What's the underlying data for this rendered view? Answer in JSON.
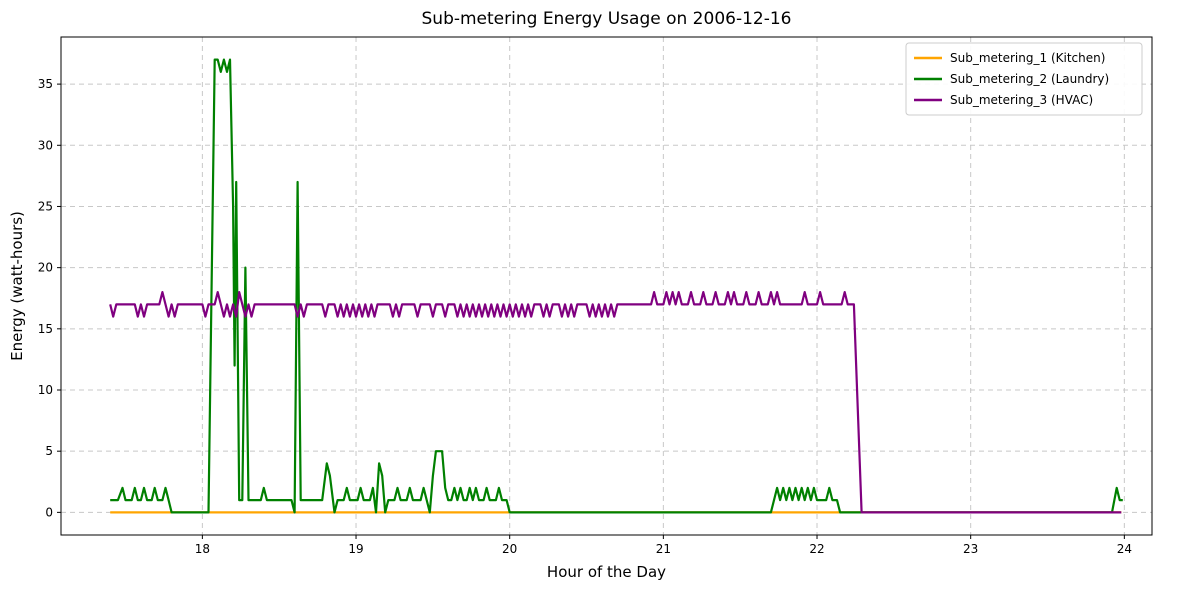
{
  "chart_data": {
    "type": "line",
    "title": "Sub-metering Energy Usage on 2006-12-16",
    "xlabel": "Hour of the Day",
    "ylabel": "Energy (watt-hours)",
    "xlim": [
      17.08,
      24.18
    ],
    "ylim": [
      -1.85,
      38.85
    ],
    "xticks": [
      18,
      19,
      20,
      21,
      22,
      23,
      24
    ],
    "yticks": [
      0,
      5,
      10,
      15,
      20,
      25,
      30,
      35
    ],
    "grid": true,
    "legend_position": "top-right",
    "series": [
      {
        "name": "Sub_metering_1 (Kitchen)",
        "color": "#ffa500",
        "points": [
          [
            17.4,
            0
          ],
          [
            22.1,
            0
          ],
          [
            22.27,
            0
          ],
          [
            23.98,
            0
          ]
        ]
      },
      {
        "name": "Sub_metering_2 (Laundry)",
        "color": "#008000",
        "points": [
          [
            17.4,
            1
          ],
          [
            17.45,
            1
          ],
          [
            17.48,
            2
          ],
          [
            17.5,
            1
          ],
          [
            17.54,
            1
          ],
          [
            17.56,
            2
          ],
          [
            17.58,
            1
          ],
          [
            17.6,
            1
          ],
          [
            17.62,
            2
          ],
          [
            17.64,
            1
          ],
          [
            17.67,
            1
          ],
          [
            17.69,
            2
          ],
          [
            17.71,
            1
          ],
          [
            17.74,
            1
          ],
          [
            17.76,
            2
          ],
          [
            17.78,
            1
          ],
          [
            17.8,
            0
          ],
          [
            18.04,
            0
          ],
          [
            18.08,
            37
          ],
          [
            18.1,
            37
          ],
          [
            18.12,
            36
          ],
          [
            18.14,
            37
          ],
          [
            18.16,
            36
          ],
          [
            18.18,
            37
          ],
          [
            18.2,
            25
          ],
          [
            18.21,
            12
          ],
          [
            18.22,
            27
          ],
          [
            18.24,
            1
          ],
          [
            18.26,
            1
          ],
          [
            18.28,
            20
          ],
          [
            18.3,
            1
          ],
          [
            18.38,
            1
          ],
          [
            18.4,
            2
          ],
          [
            18.42,
            1
          ],
          [
            18.58,
            1
          ],
          [
            18.6,
            0
          ],
          [
            18.62,
            27
          ],
          [
            18.64,
            1
          ],
          [
            18.78,
            1
          ],
          [
            18.81,
            4
          ],
          [
            18.83,
            3
          ],
          [
            18.86,
            0
          ],
          [
            18.88,
            1
          ],
          [
            18.92,
            1
          ],
          [
            18.94,
            2
          ],
          [
            18.96,
            1
          ],
          [
            19.01,
            1
          ],
          [
            19.03,
            2
          ],
          [
            19.05,
            1
          ],
          [
            19.09,
            1
          ],
          [
            19.11,
            2
          ],
          [
            19.13,
            0
          ],
          [
            19.15,
            4
          ],
          [
            19.17,
            3
          ],
          [
            19.19,
            0
          ],
          [
            19.21,
            1
          ],
          [
            19.25,
            1
          ],
          [
            19.27,
            2
          ],
          [
            19.29,
            1
          ],
          [
            19.33,
            1
          ],
          [
            19.35,
            2
          ],
          [
            19.37,
            1
          ],
          [
            19.42,
            1
          ],
          [
            19.44,
            2
          ],
          [
            19.46,
            1
          ],
          [
            19.48,
            0
          ],
          [
            19.5,
            3
          ],
          [
            19.52,
            5
          ],
          [
            19.56,
            5
          ],
          [
            19.58,
            2
          ],
          [
            19.6,
            1
          ],
          [
            19.62,
            1
          ],
          [
            19.64,
            2
          ],
          [
            19.66,
            1
          ],
          [
            19.68,
            2
          ],
          [
            19.7,
            1
          ],
          [
            19.72,
            1
          ],
          [
            19.74,
            2
          ],
          [
            19.76,
            1
          ],
          [
            19.78,
            2
          ],
          [
            19.8,
            1
          ],
          [
            19.83,
            1
          ],
          [
            19.85,
            2
          ],
          [
            19.87,
            1
          ],
          [
            19.91,
            1
          ],
          [
            19.93,
            2
          ],
          [
            19.95,
            1
          ],
          [
            19.98,
            1
          ],
          [
            20.0,
            0
          ],
          [
            21.7,
            0
          ],
          [
            21.74,
            2
          ],
          [
            21.76,
            1
          ],
          [
            21.78,
            2
          ],
          [
            21.8,
            1
          ],
          [
            21.82,
            2
          ],
          [
            21.84,
            1
          ],
          [
            21.86,
            2
          ],
          [
            21.88,
            1
          ],
          [
            21.9,
            2
          ],
          [
            21.92,
            1
          ],
          [
            21.94,
            2
          ],
          [
            21.96,
            1
          ],
          [
            21.98,
            2
          ],
          [
            22.0,
            1
          ],
          [
            22.06,
            1
          ],
          [
            22.08,
            2
          ],
          [
            22.1,
            1
          ],
          [
            22.13,
            1
          ],
          [
            22.15,
            0
          ],
          [
            23.92,
            0
          ],
          [
            23.95,
            2
          ],
          [
            23.97,
            1
          ],
          [
            23.99,
            1
          ]
        ]
      },
      {
        "name": "Sub_metering_3 (HVAC)",
        "color": "#800080",
        "points": [
          [
            17.4,
            17
          ],
          [
            17.42,
            16
          ],
          [
            17.44,
            17
          ],
          [
            17.56,
            17
          ],
          [
            17.58,
            16
          ],
          [
            17.6,
            17
          ],
          [
            17.62,
            16
          ],
          [
            17.64,
            17
          ],
          [
            17.72,
            17
          ],
          [
            17.74,
            18
          ],
          [
            17.76,
            17
          ],
          [
            17.78,
            16
          ],
          [
            17.8,
            17
          ],
          [
            17.82,
            16
          ],
          [
            17.84,
            17
          ],
          [
            18.0,
            17
          ],
          [
            18.02,
            16
          ],
          [
            18.04,
            17
          ],
          [
            18.08,
            17
          ],
          [
            18.1,
            18
          ],
          [
            18.12,
            17
          ],
          [
            18.14,
            16
          ],
          [
            18.16,
            17
          ],
          [
            18.18,
            16
          ],
          [
            18.2,
            17
          ],
          [
            18.22,
            16
          ],
          [
            18.24,
            18
          ],
          [
            18.26,
            17
          ],
          [
            18.28,
            16
          ],
          [
            18.3,
            17
          ],
          [
            18.32,
            16
          ],
          [
            18.34,
            17
          ],
          [
            18.6,
            17
          ],
          [
            18.62,
            16
          ],
          [
            18.64,
            17
          ],
          [
            18.66,
            16
          ],
          [
            18.68,
            17
          ],
          [
            18.78,
            17
          ],
          [
            18.8,
            16
          ],
          [
            18.82,
            17
          ],
          [
            18.86,
            17
          ],
          [
            18.88,
            16
          ],
          [
            18.9,
            17
          ],
          [
            18.92,
            16
          ],
          [
            18.94,
            17
          ],
          [
            18.96,
            16
          ],
          [
            18.98,
            17
          ],
          [
            19.0,
            16
          ],
          [
            19.02,
            17
          ],
          [
            19.04,
            16
          ],
          [
            19.06,
            17
          ],
          [
            19.08,
            16
          ],
          [
            19.1,
            17
          ],
          [
            19.12,
            16
          ],
          [
            19.14,
            17
          ],
          [
            19.22,
            17
          ],
          [
            19.24,
            16
          ],
          [
            19.26,
            17
          ],
          [
            19.28,
            16
          ],
          [
            19.3,
            17
          ],
          [
            19.38,
            17
          ],
          [
            19.4,
            16
          ],
          [
            19.42,
            17
          ],
          [
            19.48,
            17
          ],
          [
            19.5,
            16
          ],
          [
            19.52,
            17
          ],
          [
            19.56,
            17
          ],
          [
            19.58,
            16
          ],
          [
            19.6,
            17
          ],
          [
            19.64,
            17
          ],
          [
            19.66,
            16
          ],
          [
            19.68,
            17
          ],
          [
            19.7,
            16
          ],
          [
            19.72,
            17
          ],
          [
            19.74,
            16
          ],
          [
            19.76,
            17
          ],
          [
            19.78,
            16
          ],
          [
            19.8,
            17
          ],
          [
            19.82,
            16
          ],
          [
            19.84,
            17
          ],
          [
            19.86,
            16
          ],
          [
            19.88,
            17
          ],
          [
            19.9,
            16
          ],
          [
            19.92,
            17
          ],
          [
            19.94,
            16
          ],
          [
            19.96,
            17
          ],
          [
            19.98,
            16
          ],
          [
            20.0,
            17
          ],
          [
            20.02,
            16
          ],
          [
            20.04,
            17
          ],
          [
            20.06,
            16
          ],
          [
            20.08,
            17
          ],
          [
            20.1,
            16
          ],
          [
            20.12,
            17
          ],
          [
            20.14,
            16
          ],
          [
            20.16,
            17
          ],
          [
            20.2,
            17
          ],
          [
            20.22,
            16
          ],
          [
            20.24,
            17
          ],
          [
            20.26,
            16
          ],
          [
            20.28,
            17
          ],
          [
            20.32,
            17
          ],
          [
            20.34,
            16
          ],
          [
            20.36,
            17
          ],
          [
            20.38,
            16
          ],
          [
            20.4,
            17
          ],
          [
            20.42,
            16
          ],
          [
            20.44,
            17
          ],
          [
            20.5,
            17
          ],
          [
            20.52,
            16
          ],
          [
            20.54,
            17
          ],
          [
            20.56,
            16
          ],
          [
            20.58,
            17
          ],
          [
            20.6,
            16
          ],
          [
            20.62,
            17
          ],
          [
            20.64,
            16
          ],
          [
            20.66,
            17
          ],
          [
            20.68,
            16
          ],
          [
            20.7,
            17
          ],
          [
            20.92,
            17
          ],
          [
            20.94,
            18
          ],
          [
            20.96,
            17
          ],
          [
            21.0,
            17
          ],
          [
            21.02,
            18
          ],
          [
            21.04,
            17
          ],
          [
            21.06,
            18
          ],
          [
            21.08,
            17
          ],
          [
            21.1,
            18
          ],
          [
            21.12,
            17
          ],
          [
            21.16,
            17
          ],
          [
            21.18,
            18
          ],
          [
            21.2,
            17
          ],
          [
            21.24,
            17
          ],
          [
            21.26,
            18
          ],
          [
            21.28,
            17
          ],
          [
            21.32,
            17
          ],
          [
            21.34,
            18
          ],
          [
            21.36,
            17
          ],
          [
            21.4,
            17
          ],
          [
            21.42,
            18
          ],
          [
            21.44,
            17
          ],
          [
            21.46,
            18
          ],
          [
            21.48,
            17
          ],
          [
            21.52,
            17
          ],
          [
            21.54,
            18
          ],
          [
            21.56,
            17
          ],
          [
            21.6,
            17
          ],
          [
            21.62,
            18
          ],
          [
            21.64,
            17
          ],
          [
            21.68,
            17
          ],
          [
            21.7,
            18
          ],
          [
            21.72,
            17
          ],
          [
            21.74,
            18
          ],
          [
            21.76,
            17
          ],
          [
            21.9,
            17
          ],
          [
            21.92,
            18
          ],
          [
            21.94,
            17
          ],
          [
            22.0,
            17
          ],
          [
            22.02,
            18
          ],
          [
            22.04,
            17
          ],
          [
            22.16,
            17
          ],
          [
            22.18,
            18
          ],
          [
            22.2,
            17
          ],
          [
            22.24,
            17
          ],
          [
            22.29,
            0
          ],
          [
            23.98,
            0
          ]
        ]
      }
    ]
  }
}
